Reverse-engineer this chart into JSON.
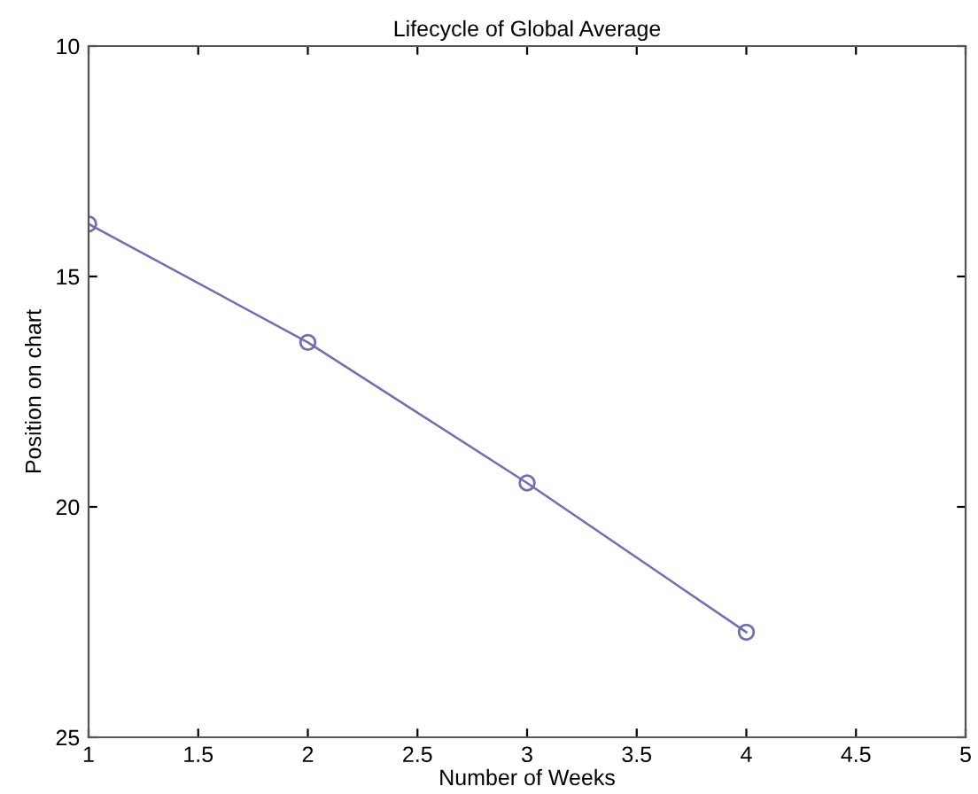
{
  "chart_data": {
    "type": "line",
    "title": "Lifecycle of Global Average",
    "xlabel": "Number of Weeks",
    "ylabel": "Position on chart",
    "x": [
      1,
      2,
      3,
      4
    ],
    "series": [
      {
        "color": "#7070b0",
        "values": [
          13.86,
          16.43,
          19.48,
          22.72
        ]
      }
    ],
    "xlim": [
      1,
      5
    ],
    "xticks": [
      1,
      1.5,
      2,
      2.5,
      3,
      3.5,
      4,
      4.5,
      5
    ],
    "ylim": [
      25,
      10
    ],
    "yticks": [
      10,
      15,
      20,
      25
    ],
    "marker": "circle",
    "line_style": "solid",
    "grid": false,
    "legend": false
  }
}
